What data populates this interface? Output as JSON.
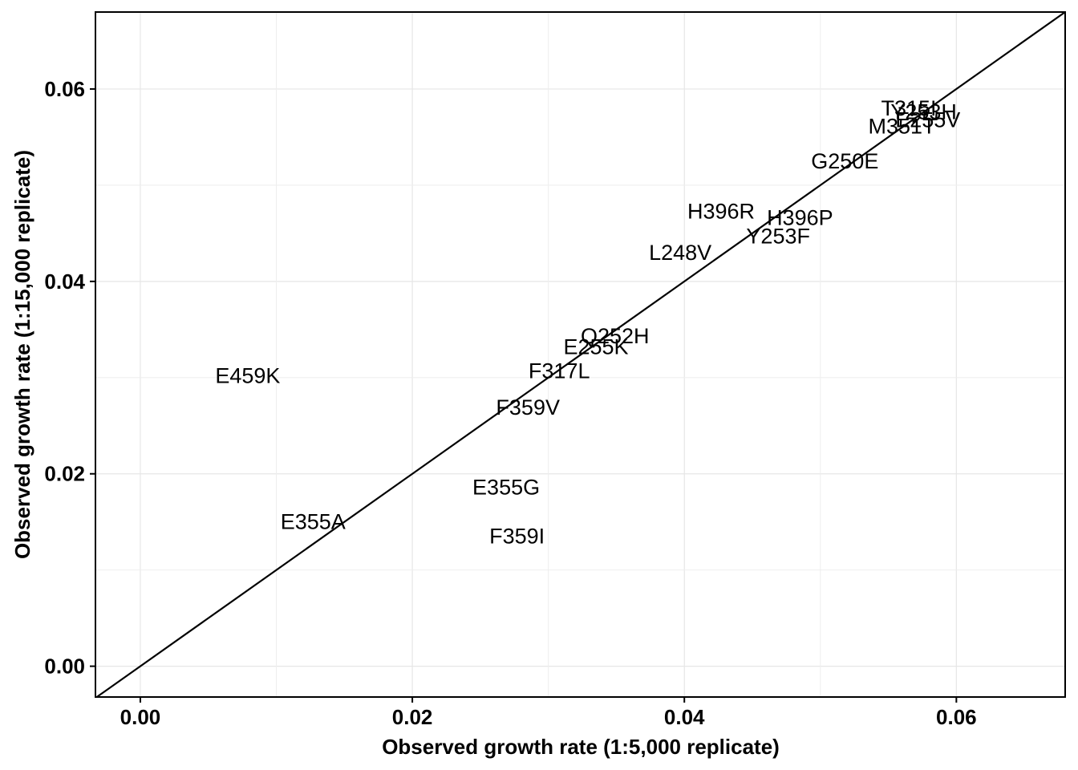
{
  "chart_data": {
    "type": "scatter",
    "title": "",
    "xlabel": "Observed growth rate (1:5,000 replicate)",
    "ylabel": "Observed growth rate (1:15,000 replicate)",
    "xlim": [
      -0.0033,
      0.068
    ],
    "ylim": [
      -0.0032,
      0.068
    ],
    "x_ticks": [
      0.0,
      0.02,
      0.04,
      0.06
    ],
    "y_ticks": [
      0.0,
      0.02,
      0.04,
      0.06
    ],
    "x_tick_labels": [
      "0.00",
      "0.02",
      "0.04",
      "0.06"
    ],
    "y_tick_labels": [
      "0.00",
      "0.02",
      "0.04",
      "0.06"
    ],
    "grid": true,
    "reference_line": "y = x",
    "points": [
      {
        "label": "E459K",
        "x": 0.0079,
        "y": 0.0302
      },
      {
        "label": "E355A",
        "x": 0.0127,
        "y": 0.015
      },
      {
        "label": "E355G",
        "x": 0.0269,
        "y": 0.0186
      },
      {
        "label": "F359I",
        "x": 0.0277,
        "y": 0.0135
      },
      {
        "label": "F359V",
        "x": 0.0285,
        "y": 0.0269
      },
      {
        "label": "F317L",
        "x": 0.0308,
        "y": 0.0307
      },
      {
        "label": "E255K",
        "x": 0.0335,
        "y": 0.0332
      },
      {
        "label": "Q252H",
        "x": 0.0349,
        "y": 0.0343
      },
      {
        "label": "L248V",
        "x": 0.0397,
        "y": 0.043
      },
      {
        "label": "H396R",
        "x": 0.0427,
        "y": 0.0473
      },
      {
        "label": "Y253F",
        "x": 0.0469,
        "y": 0.0447
      },
      {
        "label": "H396P",
        "x": 0.0485,
        "y": 0.0466
      },
      {
        "label": "G250E",
        "x": 0.0518,
        "y": 0.0525
      },
      {
        "label": "M351T",
        "x": 0.056,
        "y": 0.0561
      },
      {
        "label": "T315I",
        "x": 0.0565,
        "y": 0.058
      },
      {
        "label": "Y253H",
        "x": 0.0576,
        "y": 0.0576
      },
      {
        "label": "E255V",
        "x": 0.0579,
        "y": 0.0568
      }
    ]
  }
}
